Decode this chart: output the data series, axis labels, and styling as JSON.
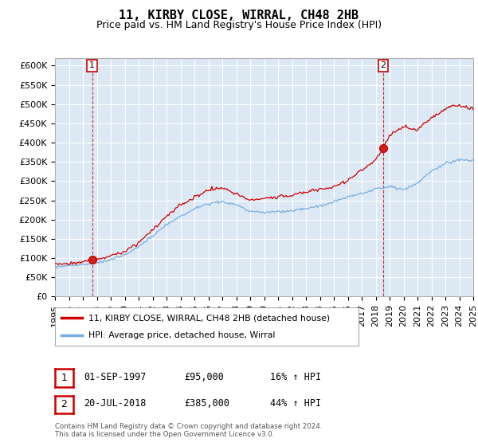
{
  "title": "11, KIRBY CLOSE, WIRRAL, CH48 2HB",
  "subtitle": "Price paid vs. HM Land Registry's House Price Index (HPI)",
  "ylabel_ticks": [
    "£0",
    "£50K",
    "£100K",
    "£150K",
    "£200K",
    "£250K",
    "£300K",
    "£350K",
    "£400K",
    "£450K",
    "£500K",
    "£550K",
    "£600K"
  ],
  "ytick_values": [
    0,
    50000,
    100000,
    150000,
    200000,
    250000,
    300000,
    350000,
    400000,
    450000,
    500000,
    550000,
    600000
  ],
  "xlim_years": [
    1995,
    2025
  ],
  "ylim": [
    0,
    620000
  ],
  "purchase1": {
    "year": 1997.67,
    "price": 95000,
    "label": "1"
  },
  "purchase2": {
    "year": 2018.54,
    "price": 385000,
    "label": "2"
  },
  "legend_line1": "11, KIRBY CLOSE, WIRRAL, CH48 2HB (detached house)",
  "legend_line2": "HPI: Average price, detached house, Wirral",
  "table_row1": [
    "1",
    "01-SEP-1997",
    "£95,000",
    "16% ↑ HPI"
  ],
  "table_row2": [
    "2",
    "20-JUL-2018",
    "£385,000",
    "44% ↑ HPI"
  ],
  "footnote": "Contains HM Land Registry data © Crown copyright and database right 2024.\nThis data is licensed under the Open Government Licence v3.0.",
  "line_color_red": "#cc0000",
  "line_color_blue": "#7aade0",
  "grid_color": "#cccccc",
  "bg_color": "#ffffff",
  "plot_bg_color": "#dce9f5",
  "title_fontsize": 11,
  "subtitle_fontsize": 9,
  "tick_fontsize": 8,
  "xtick_years": [
    1995,
    1996,
    1997,
    1998,
    1999,
    2000,
    2001,
    2002,
    2003,
    2004,
    2005,
    2006,
    2007,
    2008,
    2009,
    2010,
    2011,
    2012,
    2013,
    2014,
    2015,
    2016,
    2017,
    2018,
    2019,
    2020,
    2021,
    2022,
    2023,
    2024,
    2025
  ],
  "hpi_knots_x": [
    1995,
    1996,
    1997,
    1998,
    1999,
    2000,
    2001,
    2002,
    2003,
    2004,
    2005,
    2006,
    2007,
    2008,
    2009,
    2010,
    2011,
    2012,
    2013,
    2014,
    2015,
    2016,
    2017,
    2018,
    2019,
    2020,
    2021,
    2022,
    2023,
    2024,
    2025
  ],
  "hpi_knots_y": [
    78000,
    80000,
    82000,
    87000,
    95000,
    108000,
    130000,
    155000,
    185000,
    205000,
    225000,
    238000,
    245000,
    235000,
    218000,
    215000,
    218000,
    220000,
    225000,
    232000,
    242000,
    255000,
    265000,
    275000,
    285000,
    278000,
    295000,
    325000,
    345000,
    355000,
    355000
  ],
  "price_knots_x": [
    1995,
    1996,
    1997,
    1997.67,
    1998,
    1999,
    2000,
    2001,
    2002,
    2003,
    2004,
    2005,
    2006,
    2007,
    2008,
    2009,
    2010,
    2011,
    2012,
    2013,
    2014,
    2015,
    2016,
    2017,
    2018,
    2018.54,
    2019,
    2020,
    2021,
    2022,
    2023,
    2024,
    2025
  ],
  "price_knots_y": [
    85000,
    87000,
    90000,
    95000,
    100000,
    108000,
    118000,
    143000,
    178000,
    210000,
    240000,
    260000,
    278000,
    285000,
    268000,
    255000,
    258000,
    262000,
    265000,
    272000,
    280000,
    288000,
    305000,
    330000,
    355000,
    385000,
    420000,
    445000,
    435000,
    465000,
    490000,
    500000,
    490000
  ]
}
